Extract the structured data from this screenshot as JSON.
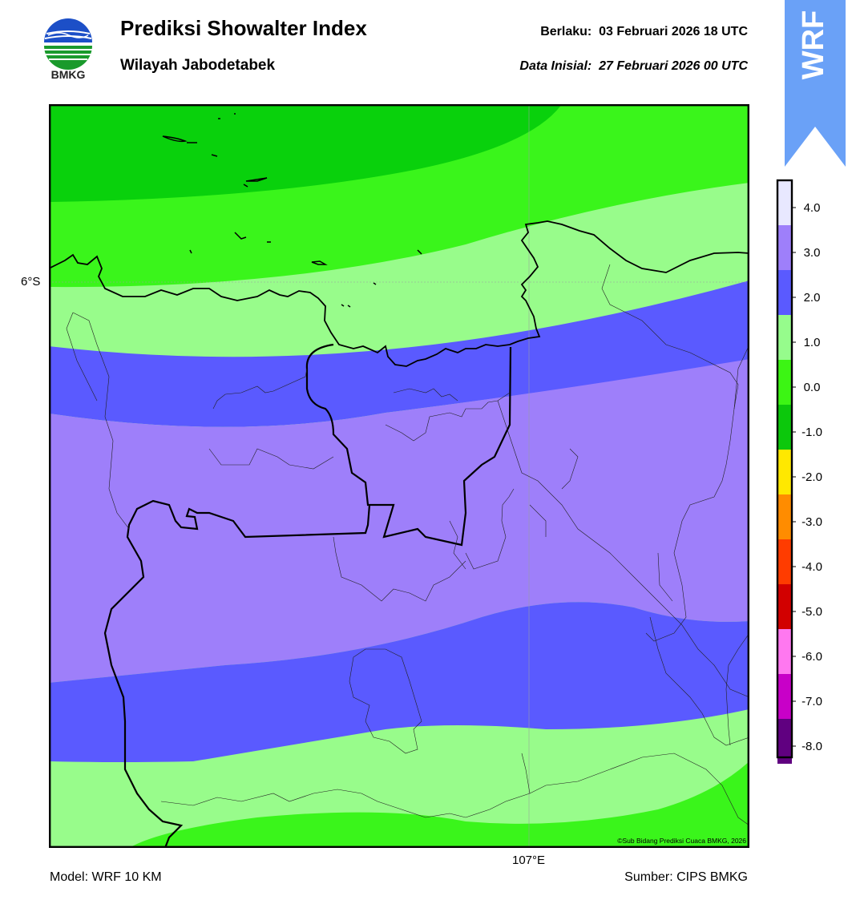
{
  "header": {
    "title": "Prediksi Showalter Index",
    "region": "Wilayah Jabodetabek",
    "valid_label": "Berlaku:",
    "valid_time": "03 Februari 2026 18 UTC",
    "init_label": "Data Inisial:",
    "init_time": "27 Februari 2026 00 UTC"
  },
  "logo": {
    "text": "BMKG",
    "icon": "bmkg-logo"
  },
  "banner": {
    "text": "WRF",
    "color": "#6aa1f7"
  },
  "map": {
    "lat_label": "6°S",
    "lon_label": "107°E",
    "copyright": "©Sub Bidang Prediksi Cuaca BMKG, 2026"
  },
  "footer": {
    "model": "Model: WRF 10 KM",
    "source": "Sumber: CIPS BMKG"
  },
  "legend": {
    "ticks": [
      "4.0",
      "3.0",
      "2.0",
      "1.0",
      "0.0",
      "-1.0",
      "-2.0",
      "-3.0",
      "-4.0",
      "-5.0",
      "-6.0",
      "-7.0",
      "-8.0"
    ],
    "colors": [
      "#e8e8ff",
      "#9e7ffa",
      "#5a5aff",
      "#96fc8c",
      "#3cf514",
      "#0cc80c",
      "#ffe800",
      "#ff8c00",
      "#ff3c00",
      "#d20000",
      "#ff78f0",
      "#c800c8",
      "#600080"
    ]
  },
  "palette": {
    "dark_green": "#09d10c",
    "green": "#3af51b",
    "light_green": "#98fc8b",
    "blue": "#5a5aff",
    "purple": "#9e7ffa"
  }
}
